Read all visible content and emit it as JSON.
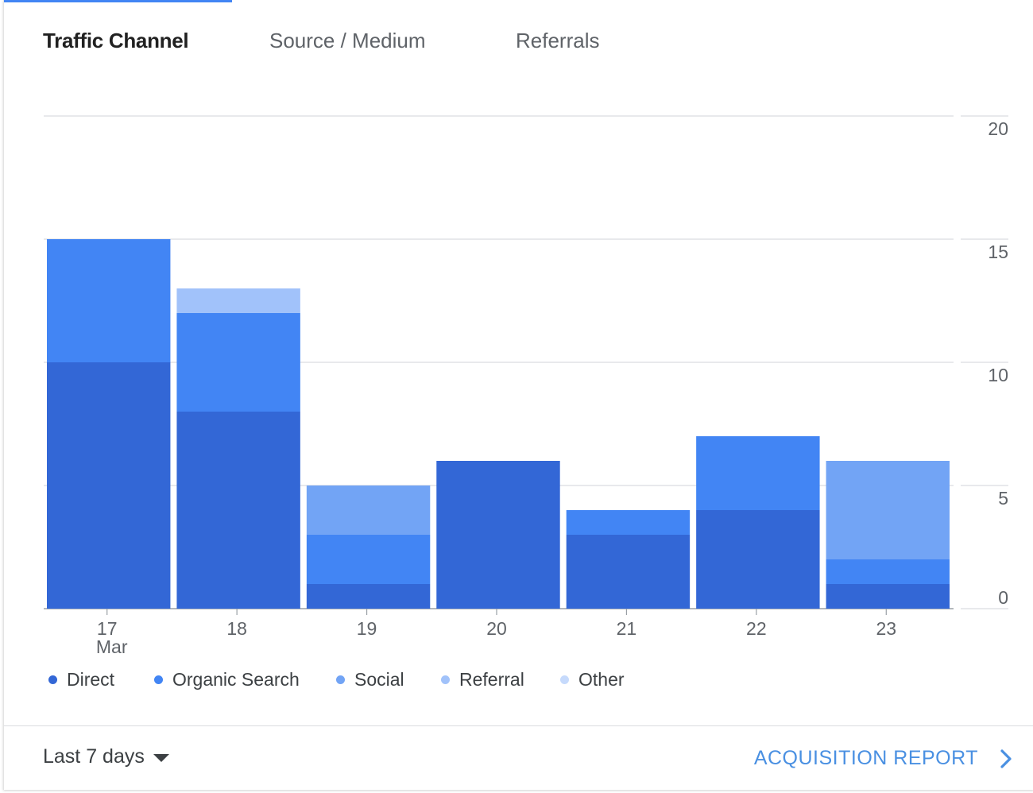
{
  "tabs": [
    {
      "label": "Traffic Channel",
      "active": true
    },
    {
      "label": "Source / Medium",
      "active": false
    },
    {
      "label": "Referrals",
      "active": false
    }
  ],
  "chart_data": {
    "type": "bar",
    "stacked": true,
    "categories": [
      "17",
      "18",
      "19",
      "20",
      "21",
      "22",
      "23"
    ],
    "x_sublabel": "Mar",
    "series": [
      {
        "name": "Direct",
        "color": "#3367d6",
        "values": [
          10,
          8,
          1,
          6,
          3,
          4,
          1
        ]
      },
      {
        "name": "Organic Search",
        "color": "#4285f4",
        "values": [
          5,
          4,
          2,
          0,
          1,
          3,
          1
        ]
      },
      {
        "name": "Social",
        "color": "#72a4f5",
        "values": [
          0,
          0,
          2,
          0,
          0,
          0,
          4
        ]
      },
      {
        "name": "Referral",
        "color": "#a1c2fa",
        "values": [
          0,
          1,
          0,
          0,
          0,
          0,
          0
        ]
      },
      {
        "name": "Other",
        "color": "#c6dafc",
        "values": [
          0,
          0,
          0,
          0,
          0,
          0,
          0
        ]
      }
    ],
    "yticks": [
      "0",
      "5",
      "10",
      "15",
      "20"
    ],
    "ylim": [
      0,
      20
    ],
    "y_axis_side": "right",
    "grid": true,
    "legend_position": "bottom-left"
  },
  "footer": {
    "range_label": "Last 7 days",
    "report_link": "ACQUISITION REPORT"
  },
  "colors": {
    "accent": "#4285f4",
    "link": "#4a90e2"
  },
  "icons": {
    "range_caret": "caret-down-icon",
    "report_chevron": "chevron-right-icon"
  }
}
